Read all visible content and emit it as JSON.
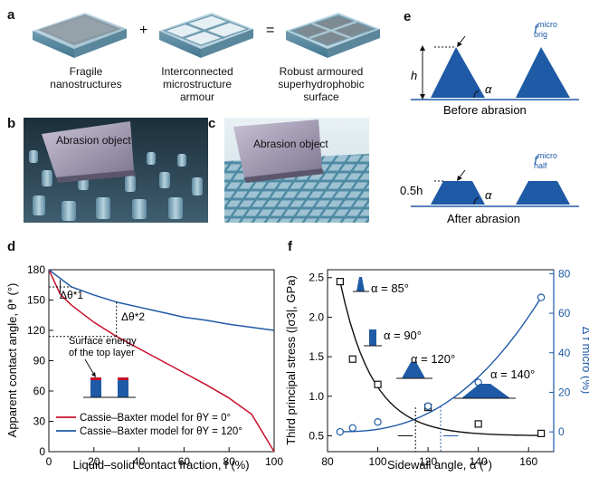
{
  "panel_letters": {
    "a": "a",
    "b": "b",
    "c": "c",
    "d": "d",
    "e": "e",
    "f": "f"
  },
  "panel_a": {
    "plus": "+",
    "equals": "=",
    "caption1": [
      "Fragile",
      "nanostructures"
    ],
    "caption2": [
      "Interconnected",
      "microstructure",
      "armour"
    ],
    "caption3": [
      "Robust armoured",
      "superhydrophobic",
      "surface"
    ]
  },
  "panel_b": {
    "label": "Abrasion object"
  },
  "panel_c": {
    "label": "Abrasion object"
  },
  "panel_e": {
    "h_label": "h",
    "alpha": "α",
    "f_orig": {
      "base": "f",
      "sup": "micro",
      "sub": "orig"
    },
    "f_half": {
      "base": "f",
      "sup": "micro",
      "sub": "half"
    },
    "before": "Before abrasion",
    "after": "After abrasion",
    "half_h": "0.5h"
  },
  "colors": {
    "blue": "#1f5aa6",
    "red": "#c8102e",
    "black": "#111111"
  },
  "chart_data": [
    {
      "panel": "d",
      "type": "line",
      "xlabel": "Liquid–solid contact fraction, f (%)",
      "ylabel": "Apparent contact angle, θ* (°)",
      "xlim": [
        0,
        100
      ],
      "ylim": [
        0,
        180
      ],
      "xticks": [
        0,
        20,
        40,
        60,
        80,
        100
      ],
      "yticks": [
        0,
        30,
        60,
        90,
        120,
        150,
        180
      ],
      "series": [
        {
          "name": "Cassie–Baxter model for θY = 0°",
          "color": "#c8102e",
          "x": [
            0,
            5,
            10,
            20,
            30,
            40,
            50,
            60,
            70,
            80,
            90,
            100
          ],
          "y": [
            180,
            156,
            145,
            128,
            114,
            102,
            90,
            78,
            66,
            53,
            37,
            0
          ]
        },
        {
          "name": "Cassie–Baxter model for θY = 120°",
          "color": "#1f5aa6",
          "x": [
            0,
            10,
            20,
            30,
            40,
            50,
            60,
            70,
            80,
            90,
            100
          ],
          "y": [
            180,
            163,
            155,
            148,
            143,
            138,
            133,
            130,
            126,
            123,
            120
          ]
        }
      ],
      "annotations": [
        "Δθ*1",
        "Δθ*2",
        "Surface energy",
        "of the top layer"
      ],
      "legend_position": "bottom-left"
    },
    {
      "panel": "f",
      "type": "scatter",
      "xlabel": "Sidewall angle, α (°)",
      "ylabel_left": "Third principal stress (|σ3|, GPa)",
      "ylabel_right": "Δ f micro (%)",
      "xlim": [
        80,
        170
      ],
      "ylim_left": [
        0.3,
        2.6
      ],
      "ylim_right": [
        -10,
        82
      ],
      "xticks": [
        80,
        100,
        120,
        140,
        160
      ],
      "yticks_left": [
        0.5,
        1.0,
        1.5,
        2.0,
        2.5
      ],
      "yticks_right": [
        0,
        20,
        40,
        60,
        80
      ],
      "series": [
        {
          "axis": "left",
          "marker": "square",
          "color": "#111111",
          "x": [
            85,
            90,
            100,
            120,
            140,
            165
          ],
          "y": [
            2.45,
            1.47,
            1.15,
            0.86,
            0.65,
            0.53
          ]
        },
        {
          "axis": "right",
          "marker": "circle",
          "color": "#1f5aa6",
          "x": [
            85,
            90,
            100,
            120,
            140,
            165
          ],
          "y": [
            0,
            2,
            5,
            13,
            25,
            68
          ]
        }
      ],
      "annotations": [
        "α = 85°",
        "α = 90°",
        "α = 120°",
        "α = 140°"
      ]
    }
  ],
  "legend_d": {
    "red": "Cassie–Baxter model for θY = 0°",
    "blue": "Cassie–Baxter model for θY = 120°"
  },
  "text_d": {
    "xlabel": "Liquid–solid contact fraction, f (%)",
    "ylabel": "Apparent contact angle, θ* (°)",
    "surf1": "Surface energy",
    "surf2": "of the top layer",
    "dt1": "Δθ*1",
    "dt2": "Δθ*2"
  },
  "text_f": {
    "xlabel": "Sidewall angle, α (°)",
    "ylabel_left": "Third principal stress (|σ3|, GPa)",
    "ylabel_right": "Δ f micro (%)",
    "a85": "α = 85°",
    "a90": "α = 90°",
    "a120": "α = 120°",
    "a140": "α = 140°"
  }
}
